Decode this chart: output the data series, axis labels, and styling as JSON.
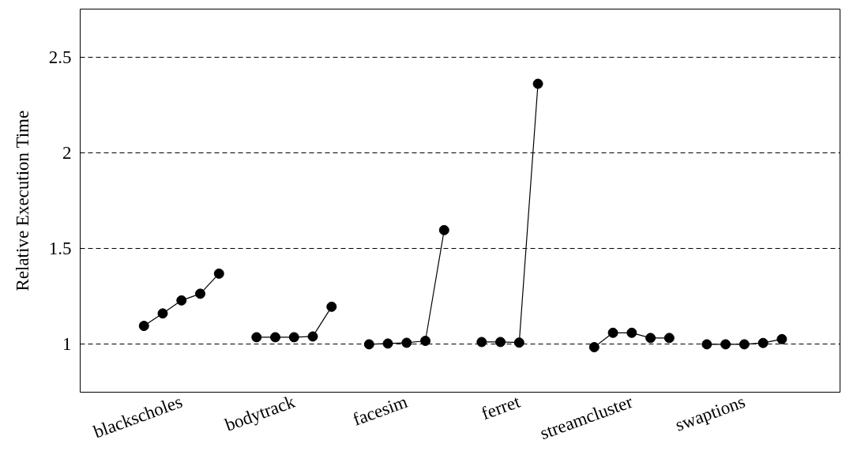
{
  "chart_data": {
    "type": "line",
    "ylabel": "Relative Execution Time",
    "categories": [
      null,
      null,
      "blackscholes",
      null,
      null,
      null,
      null,
      null,
      "bodytrack",
      null,
      null,
      null,
      null,
      null,
      "facesim",
      null,
      null,
      null,
      null,
      null,
      "ferret",
      null,
      null,
      null,
      null,
      null,
      "streamcluster",
      null,
      null,
      null,
      null,
      null,
      "swaptions",
      null,
      null
    ],
    "series": [
      {
        "color": "#000000",
        "values": [
          1.096,
          1.161,
          1.229,
          1.264,
          1.369,
          null,
          1.037,
          1.037,
          1.037,
          1.041,
          1.196,
          null,
          1.0,
          1.004,
          1.008,
          1.018,
          1.596,
          null,
          1.012,
          1.012,
          1.009,
          2.36,
          null,
          null,
          0.985,
          1.06,
          1.06,
          1.033,
          1.033,
          null,
          1.0,
          1.0,
          1.0,
          1.007,
          1.027
        ]
      }
    ],
    "ylim": [
      0.75,
      2.75
    ],
    "yticks": [
      1,
      1.5,
      2,
      2.5
    ],
    "grid": "y",
    "marker": "circle",
    "line_style": "solid"
  }
}
